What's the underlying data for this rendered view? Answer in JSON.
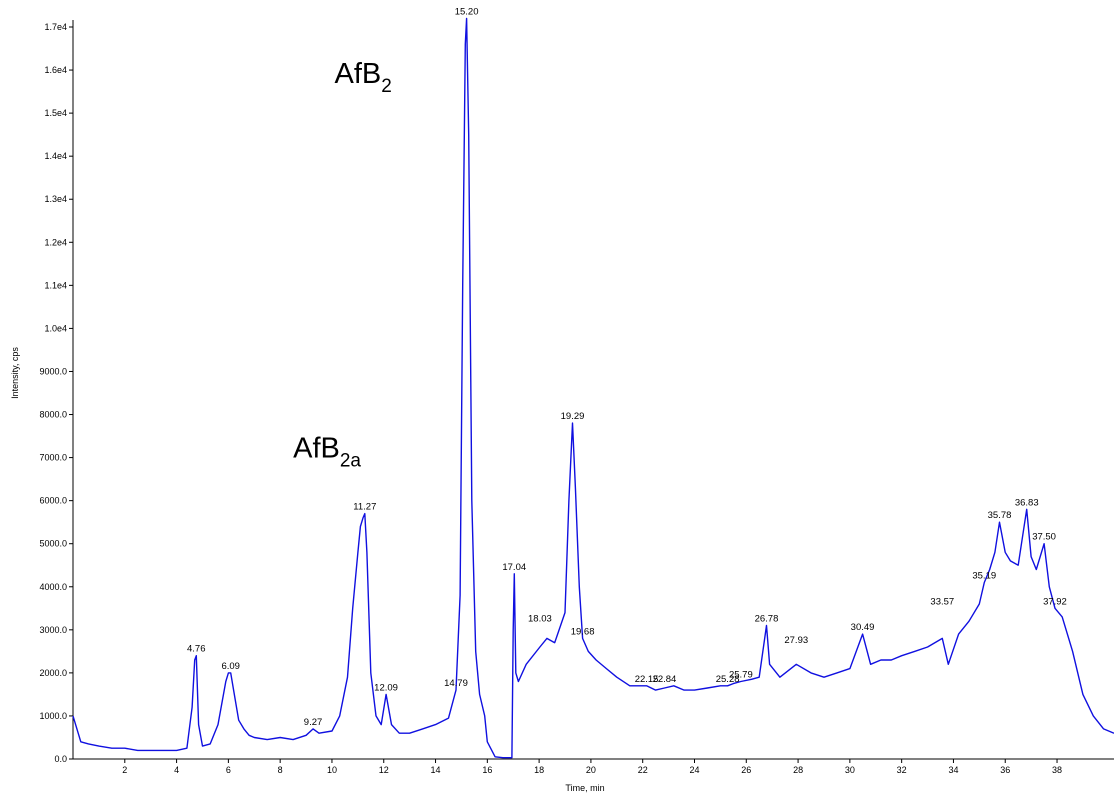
{
  "chart_data": {
    "type": "line",
    "xlabel": "Time, min",
    "ylabel": "Intensity, cps",
    "xlim": [
      0,
      40.2
    ],
    "ylim": [
      0,
      17200
    ],
    "x_ticks": [
      2,
      4,
      6,
      8,
      10,
      12,
      14,
      16,
      18,
      20,
      22,
      24,
      26,
      28,
      30,
      32,
      34,
      36,
      38
    ],
    "y_ticks": [
      {
        "value": 0,
        "label": "0.0"
      },
      {
        "value": 1000,
        "label": "1000.0"
      },
      {
        "value": 2000,
        "label": "2000.0"
      },
      {
        "value": 3000,
        "label": "3000.0"
      },
      {
        "value": 4000,
        "label": "4000.0"
      },
      {
        "value": 5000,
        "label": "5000.0"
      },
      {
        "value": 6000,
        "label": "6000.0"
      },
      {
        "value": 7000,
        "label": "7000.0"
      },
      {
        "value": 8000,
        "label": "8000.0"
      },
      {
        "value": 9000,
        "label": "9000.0"
      },
      {
        "value": 10000,
        "label": "1.0e4"
      },
      {
        "value": 11000,
        "label": "1.1e4"
      },
      {
        "value": 12000,
        "label": "1.2e4"
      },
      {
        "value": 13000,
        "label": "1.3e4"
      },
      {
        "value": 14000,
        "label": "1.4e4"
      },
      {
        "value": 15000,
        "label": "1.5e4"
      },
      {
        "value": 16000,
        "label": "1.6e4"
      },
      {
        "value": 17000,
        "label": "1.7e4"
      }
    ],
    "line_color": "#1010e0",
    "grid": false,
    "series": [
      {
        "x": [
          0.0,
          0.3,
          0.6,
          1.0,
          1.5,
          2.0,
          2.5,
          3.0,
          3.5,
          4.0,
          4.4,
          4.6,
          4.7,
          4.76,
          4.85,
          5.0,
          5.3,
          5.6,
          5.9,
          6.0,
          6.09,
          6.2,
          6.4,
          6.6,
          6.8,
          7.0,
          7.5,
          8.0,
          8.5,
          9.0,
          9.27,
          9.5,
          10.0,
          10.3,
          10.6,
          10.8,
          11.0,
          11.1,
          11.2,
          11.27,
          11.35,
          11.5,
          11.7,
          11.9,
          12.09,
          12.3,
          12.6,
          13.0,
          13.5,
          14.0,
          14.5,
          14.79,
          14.95,
          15.05,
          15.15,
          15.2,
          15.28,
          15.4,
          15.55,
          15.7,
          15.9,
          16.0,
          16.3,
          16.6,
          16.95,
          17.0,
          17.04,
          17.1,
          17.2,
          17.5,
          18.03,
          18.3,
          18.6,
          19.0,
          19.15,
          19.29,
          19.4,
          19.55,
          19.68,
          19.9,
          20.2,
          20.6,
          21.0,
          21.5,
          22.15,
          22.5,
          22.84,
          23.2,
          23.6,
          24.0,
          24.5,
          25.0,
          25.28,
          25.5,
          25.79,
          26.2,
          26.5,
          26.78,
          26.9,
          27.3,
          27.93,
          28.5,
          29.0,
          29.5,
          30.0,
          30.49,
          30.8,
          31.2,
          31.6,
          32.0,
          32.5,
          33.0,
          33.57,
          33.8,
          34.2,
          34.6,
          35.0,
          35.19,
          35.4,
          35.6,
          35.78,
          36.0,
          36.2,
          36.5,
          36.83,
          37.0,
          37.2,
          37.5,
          37.7,
          37.92,
          38.2,
          38.6,
          39.0,
          39.4,
          39.8,
          40.2
        ],
        "y": [
          1000,
          400,
          350,
          300,
          250,
          250,
          200,
          200,
          200,
          200,
          250,
          1200,
          2300,
          2400,
          800,
          300,
          350,
          800,
          1800,
          2000,
          2000,
          1600,
          900,
          700,
          550,
          500,
          450,
          500,
          450,
          550,
          700,
          600,
          650,
          1000,
          1900,
          3500,
          4800,
          5400,
          5600,
          5700,
          4800,
          2000,
          1000,
          800,
          1500,
          800,
          600,
          600,
          700,
          800,
          950,
          1600,
          3800,
          11000,
          16600,
          17200,
          14500,
          6000,
          2500,
          1500,
          1000,
          400,
          50,
          30,
          30,
          3000,
          4300,
          2000,
          1800,
          2200,
          2600,
          2800,
          2700,
          3400,
          6000,
          7800,
          6300,
          4000,
          2800,
          2500,
          2300,
          2100,
          1900,
          1700,
          1700,
          1600,
          1650,
          1700,
          1600,
          1600,
          1650,
          1700,
          1700,
          1750,
          1800,
          1850,
          1900,
          3100,
          2200,
          1900,
          2200,
          2000,
          1900,
          2000,
          2100,
          2900,
          2200,
          2300,
          2300,
          2400,
          2500,
          2600,
          2800,
          2200,
          2900,
          3200,
          3600,
          4100,
          4400,
          4800,
          5500,
          4800,
          4600,
          4500,
          5800,
          4700,
          4400,
          5000,
          4000,
          3500,
          3300,
          2500,
          1500,
          1000,
          700,
          600
        ]
      }
    ],
    "peak_labels": [
      {
        "text": "4.76",
        "x": 4.76,
        "y": 2400
      },
      {
        "text": "6.09",
        "x": 6.09,
        "y": 2000
      },
      {
        "text": "9.27",
        "x": 9.27,
        "y": 700
      },
      {
        "text": "11.27",
        "x": 11.27,
        "y": 5700
      },
      {
        "text": "12.09",
        "x": 12.09,
        "y": 1500
      },
      {
        "text": "14.79",
        "x": 14.79,
        "y": 1600
      },
      {
        "text": "15.20",
        "x": 15.2,
        "y": 17200
      },
      {
        "text": "17.04",
        "x": 17.04,
        "y": 4300
      },
      {
        "text": "18.03",
        "x": 18.03,
        "y": 3100
      },
      {
        "text": "19.29",
        "x": 19.29,
        "y": 7800
      },
      {
        "text": "19.68",
        "x": 19.68,
        "y": 2800
      },
      {
        "text": "22.15",
        "x": 22.15,
        "y": 1700
      },
      {
        "text": "22.84",
        "x": 22.84,
        "y": 1700
      },
      {
        "text": "25.28",
        "x": 25.28,
        "y": 1700
      },
      {
        "text": "25.79",
        "x": 25.79,
        "y": 1800
      },
      {
        "text": "26.78",
        "x": 26.78,
        "y": 3100
      },
      {
        "text": "27.93",
        "x": 27.93,
        "y": 2600
      },
      {
        "text": "30.49",
        "x": 30.49,
        "y": 2900
      },
      {
        "text": "33.57",
        "x": 33.57,
        "y": 3500
      },
      {
        "text": "35.19",
        "x": 35.19,
        "y": 4100
      },
      {
        "text": "35.78",
        "x": 35.78,
        "y": 5500
      },
      {
        "text": "36.83",
        "x": 36.83,
        "y": 5800
      },
      {
        "text": "37.50",
        "x": 37.5,
        "y": 5000
      },
      {
        "text": "37.92",
        "x": 37.92,
        "y": 3500
      }
    ],
    "annotations": [
      {
        "base": "AfB",
        "sub": "2",
        "x": 10.1,
        "y": 15700
      },
      {
        "base": "AfB",
        "sub": "2a",
        "x": 8.5,
        "y": 7000
      }
    ]
  }
}
